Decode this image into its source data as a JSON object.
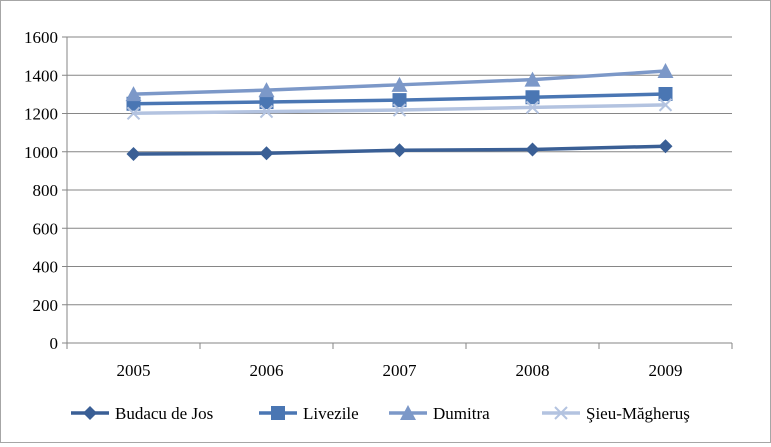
{
  "chart_data": {
    "type": "line",
    "title": "",
    "xlabel": "",
    "ylabel": "",
    "categories": [
      "2005",
      "2006",
      "2007",
      "2008",
      "2009"
    ],
    "ylim": [
      0,
      1600
    ],
    "ytick_step": 200,
    "grid": true,
    "legend_position": "bottom",
    "series": [
      {
        "name": "Budacu de Jos",
        "marker": "diamond",
        "color": "#3a5f95",
        "values": [
          988,
          992,
          1008,
          1012,
          1029
        ]
      },
      {
        "name": "Livezile",
        "marker": "square",
        "color": "#4a76b3",
        "values": [
          1251,
          1260,
          1270,
          1285,
          1302
        ]
      },
      {
        "name": "Dumitra",
        "marker": "triangle",
        "color": "#7c98c8",
        "values": [
          1301,
          1322,
          1350,
          1377,
          1422
        ]
      },
      {
        "name": "Şieu-Măgheruş",
        "marker": "x",
        "color": "#b3c3e0",
        "values": [
          1201,
          1210,
          1218,
          1232,
          1245
        ]
      }
    ]
  }
}
